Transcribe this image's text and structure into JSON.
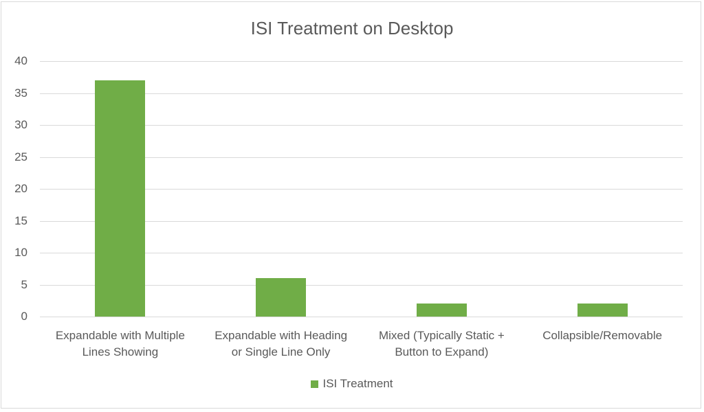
{
  "chart_data": {
    "type": "bar",
    "title": "ISI Treatment on Desktop",
    "categories": [
      "Expandable with Multiple Lines Showing",
      "Expandable with Heading or Single Line Only",
      "Mixed (Typically Static + Button to Expand)",
      "Collapsible/Removable"
    ],
    "category_lines": [
      [
        "Expandable with Multiple",
        "Lines Showing"
      ],
      [
        "Expandable with Heading",
        "or Single Line Only"
      ],
      [
        "Mixed (Typically Static +",
        "Button to Expand)"
      ],
      [
        "Collapsible/Removable",
        ""
      ]
    ],
    "series": [
      {
        "name": "ISI Treatment",
        "values": [
          37,
          6,
          2,
          2
        ],
        "color": "#70ad47"
      }
    ],
    "xlabel": "",
    "ylabel": "",
    "ylim": [
      0,
      40
    ],
    "yticks": [
      0,
      5,
      10,
      15,
      20,
      25,
      30,
      35,
      40
    ],
    "grid": true,
    "legend_position": "bottom"
  },
  "legend": {
    "label": "ISI Treatment"
  }
}
